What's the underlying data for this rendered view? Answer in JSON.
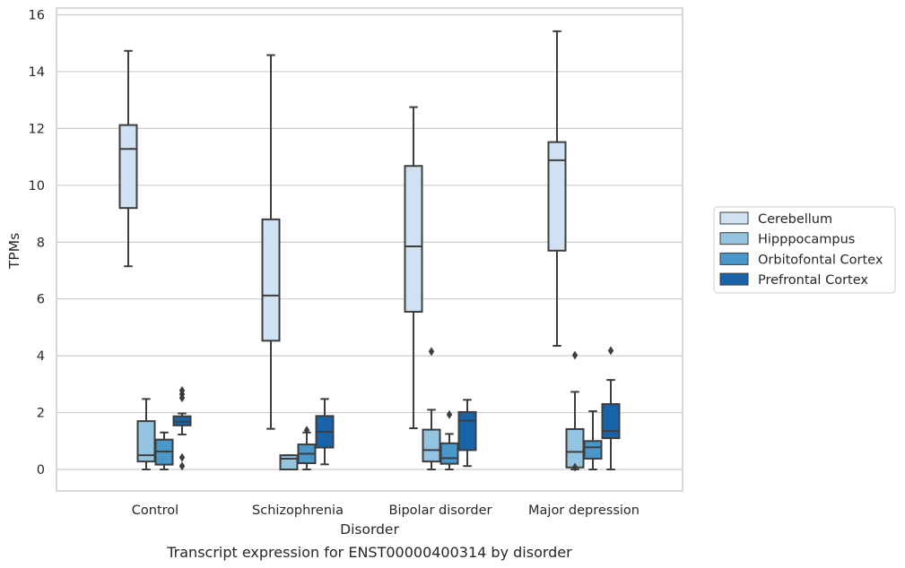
{
  "chart_data": {
    "type": "boxplot",
    "caption": "Transcript expression for ENST00000400314 by disorder",
    "xlabel": "Disorder",
    "ylabel": "TPMs",
    "categories": [
      "Control",
      "Schizophrenia",
      "Bipolar disorder",
      "Major depression"
    ],
    "ylim": [
      -0.75,
      16.2
    ],
    "yticks": [
      0,
      2,
      4,
      6,
      8,
      10,
      12,
      14,
      16
    ],
    "grid": true,
    "legend_position": "right",
    "series": [
      {
        "name": "Cerebellum",
        "color": "#d0e1f2",
        "boxes": [
          {
            "wlo": 7.15,
            "q1": 9.2,
            "med": 11.28,
            "q3": 12.12,
            "whi": 14.73,
            "outliers": []
          },
          {
            "wlo": 1.43,
            "q1": 4.53,
            "med": 6.12,
            "q3": 8.8,
            "whi": 14.58,
            "outliers": []
          },
          {
            "wlo": 1.45,
            "q1": 5.55,
            "med": 7.85,
            "q3": 10.68,
            "whi": 12.75,
            "outliers": []
          },
          {
            "wlo": 4.35,
            "q1": 7.7,
            "med": 10.88,
            "q3": 11.52,
            "whi": 15.42,
            "outliers": []
          }
        ]
      },
      {
        "name": "Hipppocampus",
        "color": "#94c4df",
        "boxes": [
          {
            "wlo": 0.0,
            "q1": 0.28,
            "med": 0.5,
            "q3": 1.7,
            "whi": 2.48,
            "outliers": []
          },
          {
            "wlo": 0.0,
            "q1": 0.0,
            "med": 0.38,
            "q3": 0.5,
            "whi": 0.5,
            "outliers": []
          },
          {
            "wlo": 0.0,
            "q1": 0.28,
            "med": 0.68,
            "q3": 1.4,
            "whi": 2.1,
            "outliers": [
              4.15
            ]
          },
          {
            "wlo": 0.0,
            "q1": 0.07,
            "med": 0.62,
            "q3": 1.42,
            "whi": 2.73,
            "outliers": [
              4.02,
              0.08
            ]
          }
        ]
      },
      {
        "name": "Orbitofontal Cortex",
        "color": "#4a98c9",
        "boxes": [
          {
            "wlo": 0.0,
            "q1": 0.17,
            "med": 0.63,
            "q3": 1.05,
            "whi": 1.3,
            "outliers": []
          },
          {
            "wlo": 0.0,
            "q1": 0.22,
            "med": 0.55,
            "q3": 0.88,
            "whi": 1.3,
            "outliers": [
              1.38
            ]
          },
          {
            "wlo": 0.0,
            "q1": 0.2,
            "med": 0.4,
            "q3": 0.92,
            "whi": 1.25,
            "outliers": [
              1.93
            ]
          },
          {
            "wlo": 0.0,
            "q1": 0.38,
            "med": 0.78,
            "q3": 1.0,
            "whi": 2.05,
            "outliers": []
          }
        ]
      },
      {
        "name": "Prefrontal Cortex",
        "color": "#1764ab",
        "boxes": [
          {
            "wlo": 1.23,
            "q1": 1.55,
            "med": 1.68,
            "q3": 1.87,
            "whi": 1.97,
            "outliers": [
              2.78,
              2.65,
              2.52,
              0.42,
              0.12
            ]
          },
          {
            "wlo": 0.18,
            "q1": 0.77,
            "med": 1.33,
            "q3": 1.88,
            "whi": 2.48,
            "outliers": []
          },
          {
            "wlo": 0.12,
            "q1": 0.68,
            "med": 1.72,
            "q3": 2.02,
            "whi": 2.45,
            "outliers": []
          },
          {
            "wlo": 0.0,
            "q1": 1.1,
            "med": 1.35,
            "q3": 2.3,
            "whi": 3.15,
            "outliers": [
              4.18
            ]
          }
        ]
      }
    ]
  }
}
